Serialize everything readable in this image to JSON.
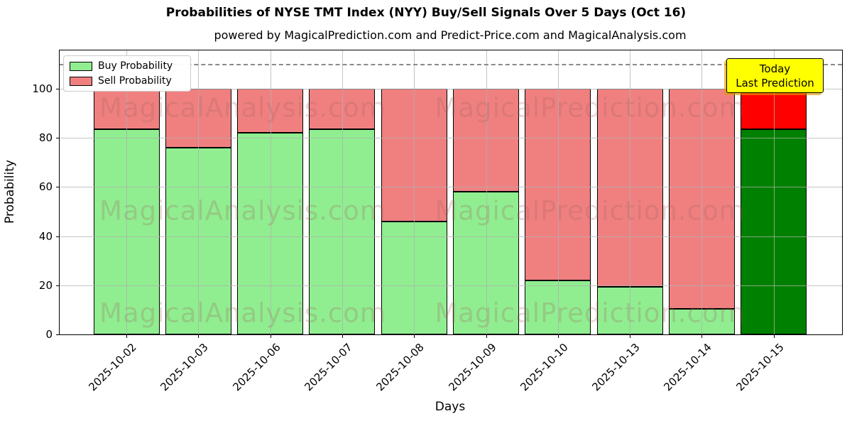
{
  "title": "Probabilities of NYSE TMT Index (NYY) Buy/Sell Signals Over 5 Days (Oct 16)",
  "subtitle": "powered by MagicalPrediction.com and Predict-Price.com and MagicalAnalysis.com",
  "watermarks": {
    "left": "MagicalAnalysis.com",
    "right": "MagicalPrediction.com"
  },
  "annotation": {
    "line1": "Today",
    "line2": "Last Prediction",
    "bg_color": "#ffff00"
  },
  "chart_data": {
    "type": "bar",
    "stacked": true,
    "title": "Probabilities of NYSE TMT Index (NYY) Buy/Sell Signals Over 5 Days (Oct 16)",
    "xlabel": "Days",
    "ylabel": "Probability",
    "categories": [
      "2025-10-02",
      "2025-10-03",
      "2025-10-06",
      "2025-10-07",
      "2025-10-08",
      "2025-10-09",
      "2025-10-10",
      "2025-10-13",
      "2025-10-14",
      "2025-10-15"
    ],
    "series": [
      {
        "name": "Buy Probability",
        "color": "#90ee90",
        "last_bar_color": "#008000",
        "values": [
          83.5,
          76,
          82,
          83.5,
          46,
          58,
          22,
          19.5,
          10.5,
          83.5
        ]
      },
      {
        "name": "Sell Probability",
        "color": "#f08080",
        "last_bar_color": "#ff0000",
        "values": [
          16.5,
          24,
          18,
          16.5,
          54,
          42,
          78,
          80.5,
          89.5,
          16.5
        ]
      }
    ],
    "yticks": [
      0,
      20,
      40,
      60,
      80,
      100
    ],
    "ylim": [
      0,
      115.6
    ],
    "dashed_line_y": 110,
    "grid": true,
    "legend_position": "upper left",
    "bar_edge_color": "#000000",
    "dashed_line_color": "#8a8a8a"
  }
}
